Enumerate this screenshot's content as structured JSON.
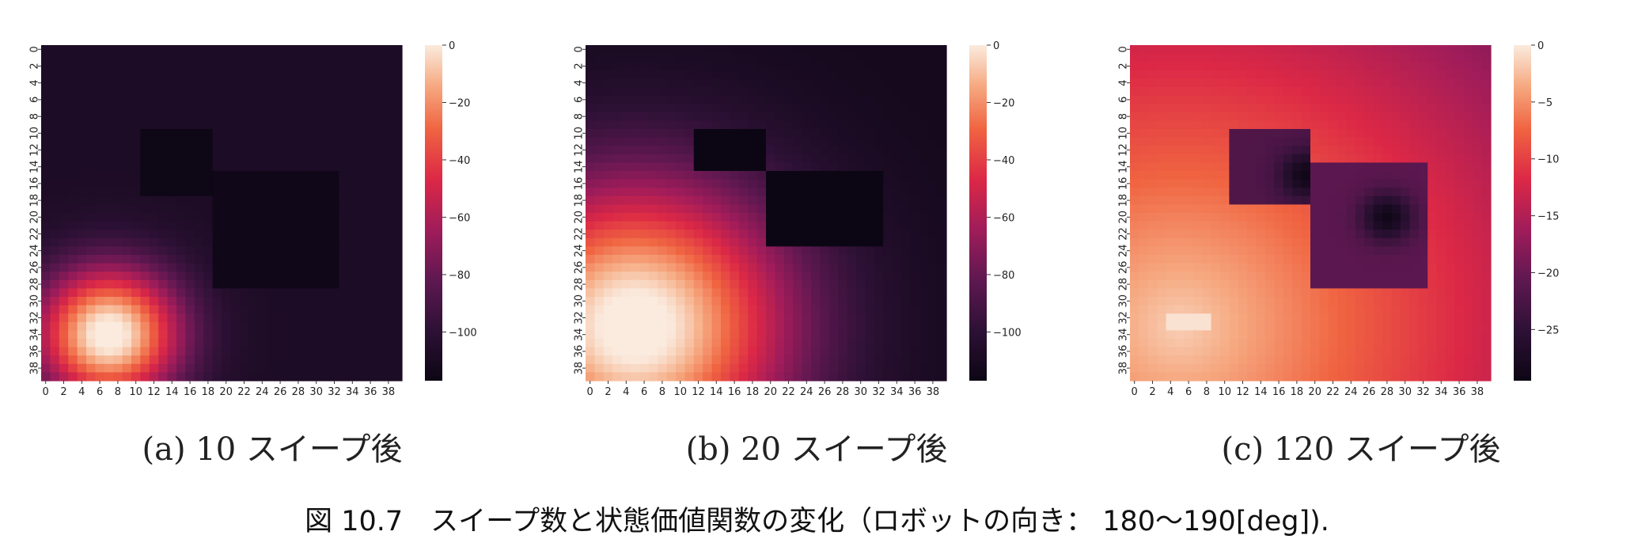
{
  "figure_caption": "図 10.7　スイープ数と状態価値関数の変化（ロボットの向き： 180〜190[deg]).",
  "chart_data": [
    {
      "type": "heatmap",
      "caption": "(a) 10 スイープ後",
      "grid_size": 40,
      "x_ticks": [
        "0",
        "2",
        "4",
        "6",
        "8",
        "10",
        "12",
        "14",
        "16",
        "18",
        "20",
        "22",
        "24",
        "26",
        "28",
        "30",
        "32",
        "34",
        "36",
        "38"
      ],
      "y_ticks": [
        "0",
        "2",
        "4",
        "6",
        "8",
        "10",
        "12",
        "14",
        "16",
        "18",
        "20",
        "22",
        "24",
        "26",
        "28",
        "30",
        "32",
        "34",
        "36",
        "38"
      ],
      "colorbar_ticks": [
        0,
        -20,
        -40,
        -60,
        -80,
        -100
      ],
      "colorbar_labels": [
        "0",
        "−20",
        "−40",
        "−60",
        "−80",
        "−100"
      ],
      "vmin": -117,
      "vmax": 0,
      "field": {
        "background": -108,
        "goal": {
          "center": [
            7,
            34
          ],
          "radius": 10,
          "scale": 0.7
        },
        "obstacles": [
          {
            "x": [
              11,
              18
            ],
            "y": [
              10,
              17
            ],
            "value": -116
          },
          {
            "x": [
              19,
              32
            ],
            "y": [
              15,
              28
            ],
            "value": -115
          }
        ]
      }
    },
    {
      "type": "heatmap",
      "caption": "(b) 20 スイープ後",
      "grid_size": 40,
      "x_ticks": [
        "0",
        "2",
        "4",
        "6",
        "8",
        "10",
        "12",
        "14",
        "16",
        "18",
        "20",
        "22",
        "24",
        "26",
        "28",
        "30",
        "32",
        "34",
        "36",
        "38"
      ],
      "y_ticks": [
        "0",
        "2",
        "4",
        "6",
        "8",
        "10",
        "12",
        "14",
        "16",
        "18",
        "20",
        "22",
        "24",
        "26",
        "28",
        "30",
        "32",
        "34",
        "36",
        "38"
      ],
      "colorbar_ticks": [
        0,
        -20,
        -40,
        -60,
        -80,
        -100
      ],
      "colorbar_labels": [
        "0",
        "−20",
        "−40",
        "−60",
        "−80",
        "−100"
      ],
      "vmin": -117,
      "vmax": 0,
      "field": {
        "background": -112,
        "goal": {
          "center": [
            5,
            33
          ],
          "radius": 22,
          "scale": 0.8
        },
        "obstacles": [
          {
            "x": [
              12,
              19
            ],
            "y": [
              10,
              14
            ],
            "value": -117
          },
          {
            "x": [
              20,
              32
            ],
            "y": [
              15,
              23
            ],
            "value": -117
          }
        ]
      }
    },
    {
      "type": "heatmap",
      "caption": "(c) 120 スイープ後",
      "grid_size": 40,
      "x_ticks": [
        "0",
        "2",
        "4",
        "6",
        "8",
        "10",
        "12",
        "14",
        "16",
        "18",
        "20",
        "22",
        "24",
        "26",
        "28",
        "30",
        "32",
        "34",
        "36",
        "38"
      ],
      "y_ticks": [
        "0",
        "2",
        "4",
        "6",
        "8",
        "10",
        "12",
        "14",
        "16",
        "18",
        "20",
        "22",
        "24",
        "26",
        "28",
        "30",
        "32",
        "34",
        "36",
        "38"
      ],
      "colorbar_ticks": [
        0,
        -5,
        -10,
        -15,
        -20,
        -25
      ],
      "colorbar_labels": [
        "0",
        "−5",
        "−10",
        "−15",
        "−20",
        "−25"
      ],
      "vmin": -29.5,
      "vmax": 0,
      "field": {
        "background": null,
        "gradient": {
          "origin": [
            5,
            33
          ],
          "slope": 0.33,
          "base": 1.5
        },
        "goal": {
          "x": [
            4,
            8
          ],
          "y": [
            32,
            33
          ],
          "value": -0.5
        },
        "obstacles": [
          {
            "x": [
              11,
              19
            ],
            "y": [
              10,
              18
            ],
            "value": -22,
            "core": [
              19,
              15
            ],
            "core_value": -29
          },
          {
            "x": [
              20,
              32
            ],
            "y": [
              14,
              28
            ],
            "value": -21,
            "core": [
              28,
              20
            ],
            "core_value": -29
          }
        ]
      }
    }
  ]
}
